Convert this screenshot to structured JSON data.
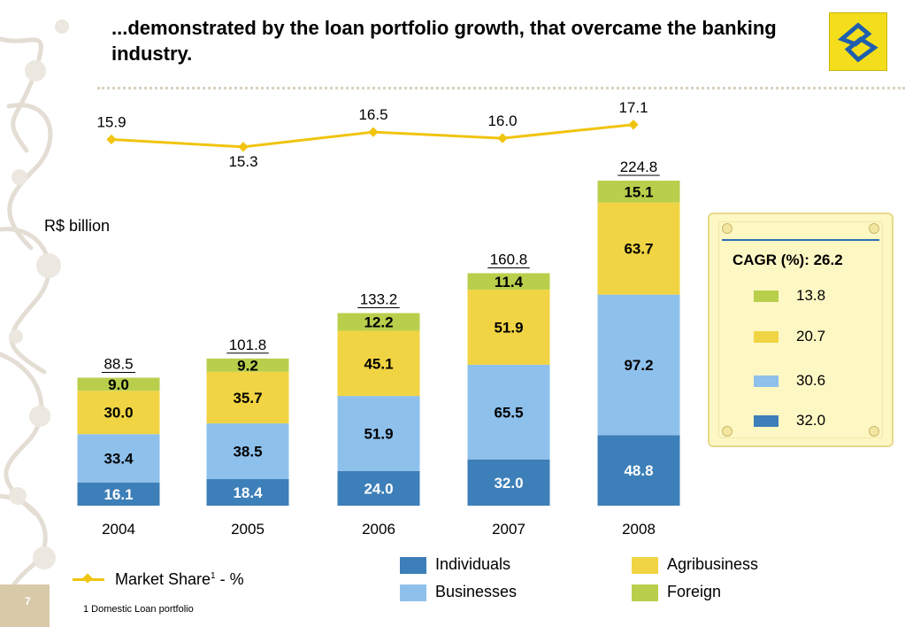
{
  "slide": {
    "title": "...demonstrated by the loan portfolio growth, that overcame the banking industry.",
    "page_number": "7",
    "footnote": "1 Domestic Loan portfolio"
  },
  "colors": {
    "individuals": "#3d7fb8",
    "businesses": "#8ec0ec",
    "agribusiness": "#f1d443",
    "foreign": "#b9cf4c",
    "market_line": "#f1c40f",
    "logo_yellow": "#f4de1c",
    "logo_blue": "#1f5fae"
  },
  "chart_data": [
    {
      "type": "bar",
      "stacked": true,
      "unit_label": "R$ billion",
      "categories": [
        "2004",
        "2005",
        "2006",
        "2007",
        "2008"
      ],
      "totals": [
        "88.5",
        "101.8",
        "133.2",
        "160.8",
        "224.8"
      ],
      "series": [
        {
          "name": "Individuals",
          "values": [
            16.1,
            18.4,
            24.0,
            32.0,
            48.8
          ],
          "labels": [
            "16.1",
            "18.4",
            "24.0",
            "32.0",
            "48.8"
          ],
          "color": "#3d7fb8",
          "label_color": "#ffffff"
        },
        {
          "name": "Businesses",
          "values": [
            33.4,
            38.5,
            51.9,
            65.5,
            97.2
          ],
          "labels": [
            "33.4",
            "38.5",
            "51.9",
            "65.5",
            "97.2"
          ],
          "color": "#8ec0ec",
          "label_color": "#000000"
        },
        {
          "name": "Agribusiness",
          "values": [
            30.0,
            35.7,
            45.1,
            51.9,
            63.7
          ],
          "labels": [
            "30.0",
            "35.7",
            "45.1",
            "51.9",
            "63.7"
          ],
          "color": "#f1d443",
          "label_color": "#000000"
        },
        {
          "name": "Foreign",
          "values": [
            9.0,
            9.2,
            12.2,
            11.4,
            15.1
          ],
          "labels": [
            "9.0",
            "9.2",
            "12.2",
            "11.4",
            "15.1"
          ],
          "color": "#b9cf4c",
          "label_color": "#000000"
        }
      ],
      "ylim": [
        0,
        224.8
      ]
    },
    {
      "type": "line",
      "name": "Market Share",
      "legend_label": "Market Share",
      "legend_sup": "1",
      "legend_suffix": " - %",
      "categories": [
        "2004",
        "2005",
        "2006",
        "2007",
        "2008"
      ],
      "values": [
        15.9,
        15.3,
        16.5,
        16.0,
        17.1
      ],
      "labels": [
        "15.9",
        "15.3",
        "16.5",
        "16.0",
        "17.1"
      ]
    }
  ],
  "cagr": {
    "title": "CAGR (%): 26.2",
    "items": [
      {
        "series": "Foreign",
        "value": "13.8",
        "color": "#b9cf4c"
      },
      {
        "series": "Agribusiness",
        "value": "20.7",
        "color": "#f1d443"
      },
      {
        "series": "Businesses",
        "value": "30.6",
        "color": "#8ec0ec"
      },
      {
        "series": "Individuals",
        "value": "32.0",
        "color": "#3d7fb8"
      }
    ]
  },
  "legend": {
    "individuals": "Individuals",
    "businesses": "Businesses",
    "agribusiness": "Agribusiness",
    "foreign": "Foreign"
  }
}
